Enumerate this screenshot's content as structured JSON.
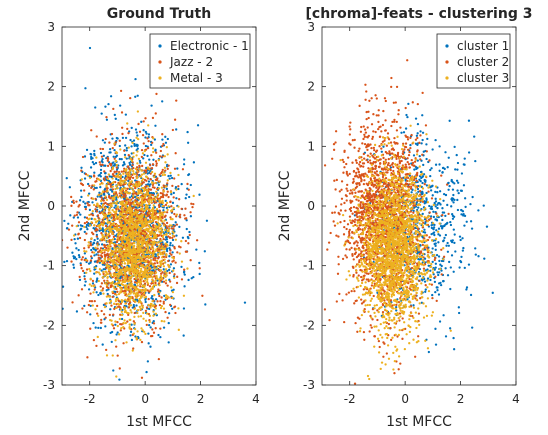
{
  "chart_data": [
    {
      "type": "scatter",
      "title": "Ground Truth",
      "xlabel": "1st MFCC",
      "ylabel": "2nd MFCC",
      "xlim": [
        -3,
        4
      ],
      "ylim": [
        -3,
        3
      ],
      "xticks": [
        -2,
        0,
        2,
        4
      ],
      "yticks": [
        -3,
        -2,
        -1,
        0,
        1,
        2,
        3
      ],
      "grid": false,
      "legend_position": "top-right",
      "series": [
        {
          "name": "Electronic - 1",
          "color": "#0072BD",
          "count": 1400,
          "center": [
            -0.55,
            -0.35
          ],
          "spread": [
            0.9,
            0.8
          ],
          "seed": 11
        },
        {
          "name": "Jazz - 2",
          "color": "#D95319",
          "count": 1400,
          "center": [
            -0.5,
            -0.5
          ],
          "spread": [
            0.85,
            0.75
          ],
          "seed": 23
        },
        {
          "name": "Metal - 3",
          "color": "#EDB120",
          "count": 1600,
          "center": [
            -0.45,
            -0.6
          ],
          "spread": [
            0.65,
            0.65
          ],
          "seed": 37
        }
      ]
    },
    {
      "type": "scatter",
      "title": "[chroma]-feats - clustering 3",
      "xlabel": "1st MFCC",
      "ylabel": "2nd MFCC",
      "xlim": [
        -3,
        4
      ],
      "ylim": [
        -3,
        3
      ],
      "xticks": [
        -2,
        0,
        2,
        4
      ],
      "yticks": [
        -3,
        -2,
        -1,
        0,
        1,
        2,
        3
      ],
      "grid": false,
      "legend_position": "top-right",
      "series": [
        {
          "name": "cluster 1",
          "color": "#0072BD",
          "count": 700,
          "center": [
            0.6,
            -0.3
          ],
          "spread": [
            0.9,
            0.75
          ],
          "seed": 41
        },
        {
          "name": "cluster 2",
          "color": "#D95319",
          "count": 1800,
          "center": [
            -0.75,
            -0.2
          ],
          "spread": [
            0.75,
            0.8
          ],
          "seed": 53
        },
        {
          "name": "cluster 3",
          "color": "#EDB120",
          "count": 1900,
          "center": [
            -0.4,
            -0.7
          ],
          "spread": [
            0.6,
            0.65
          ],
          "seed": 67
        }
      ]
    }
  ]
}
